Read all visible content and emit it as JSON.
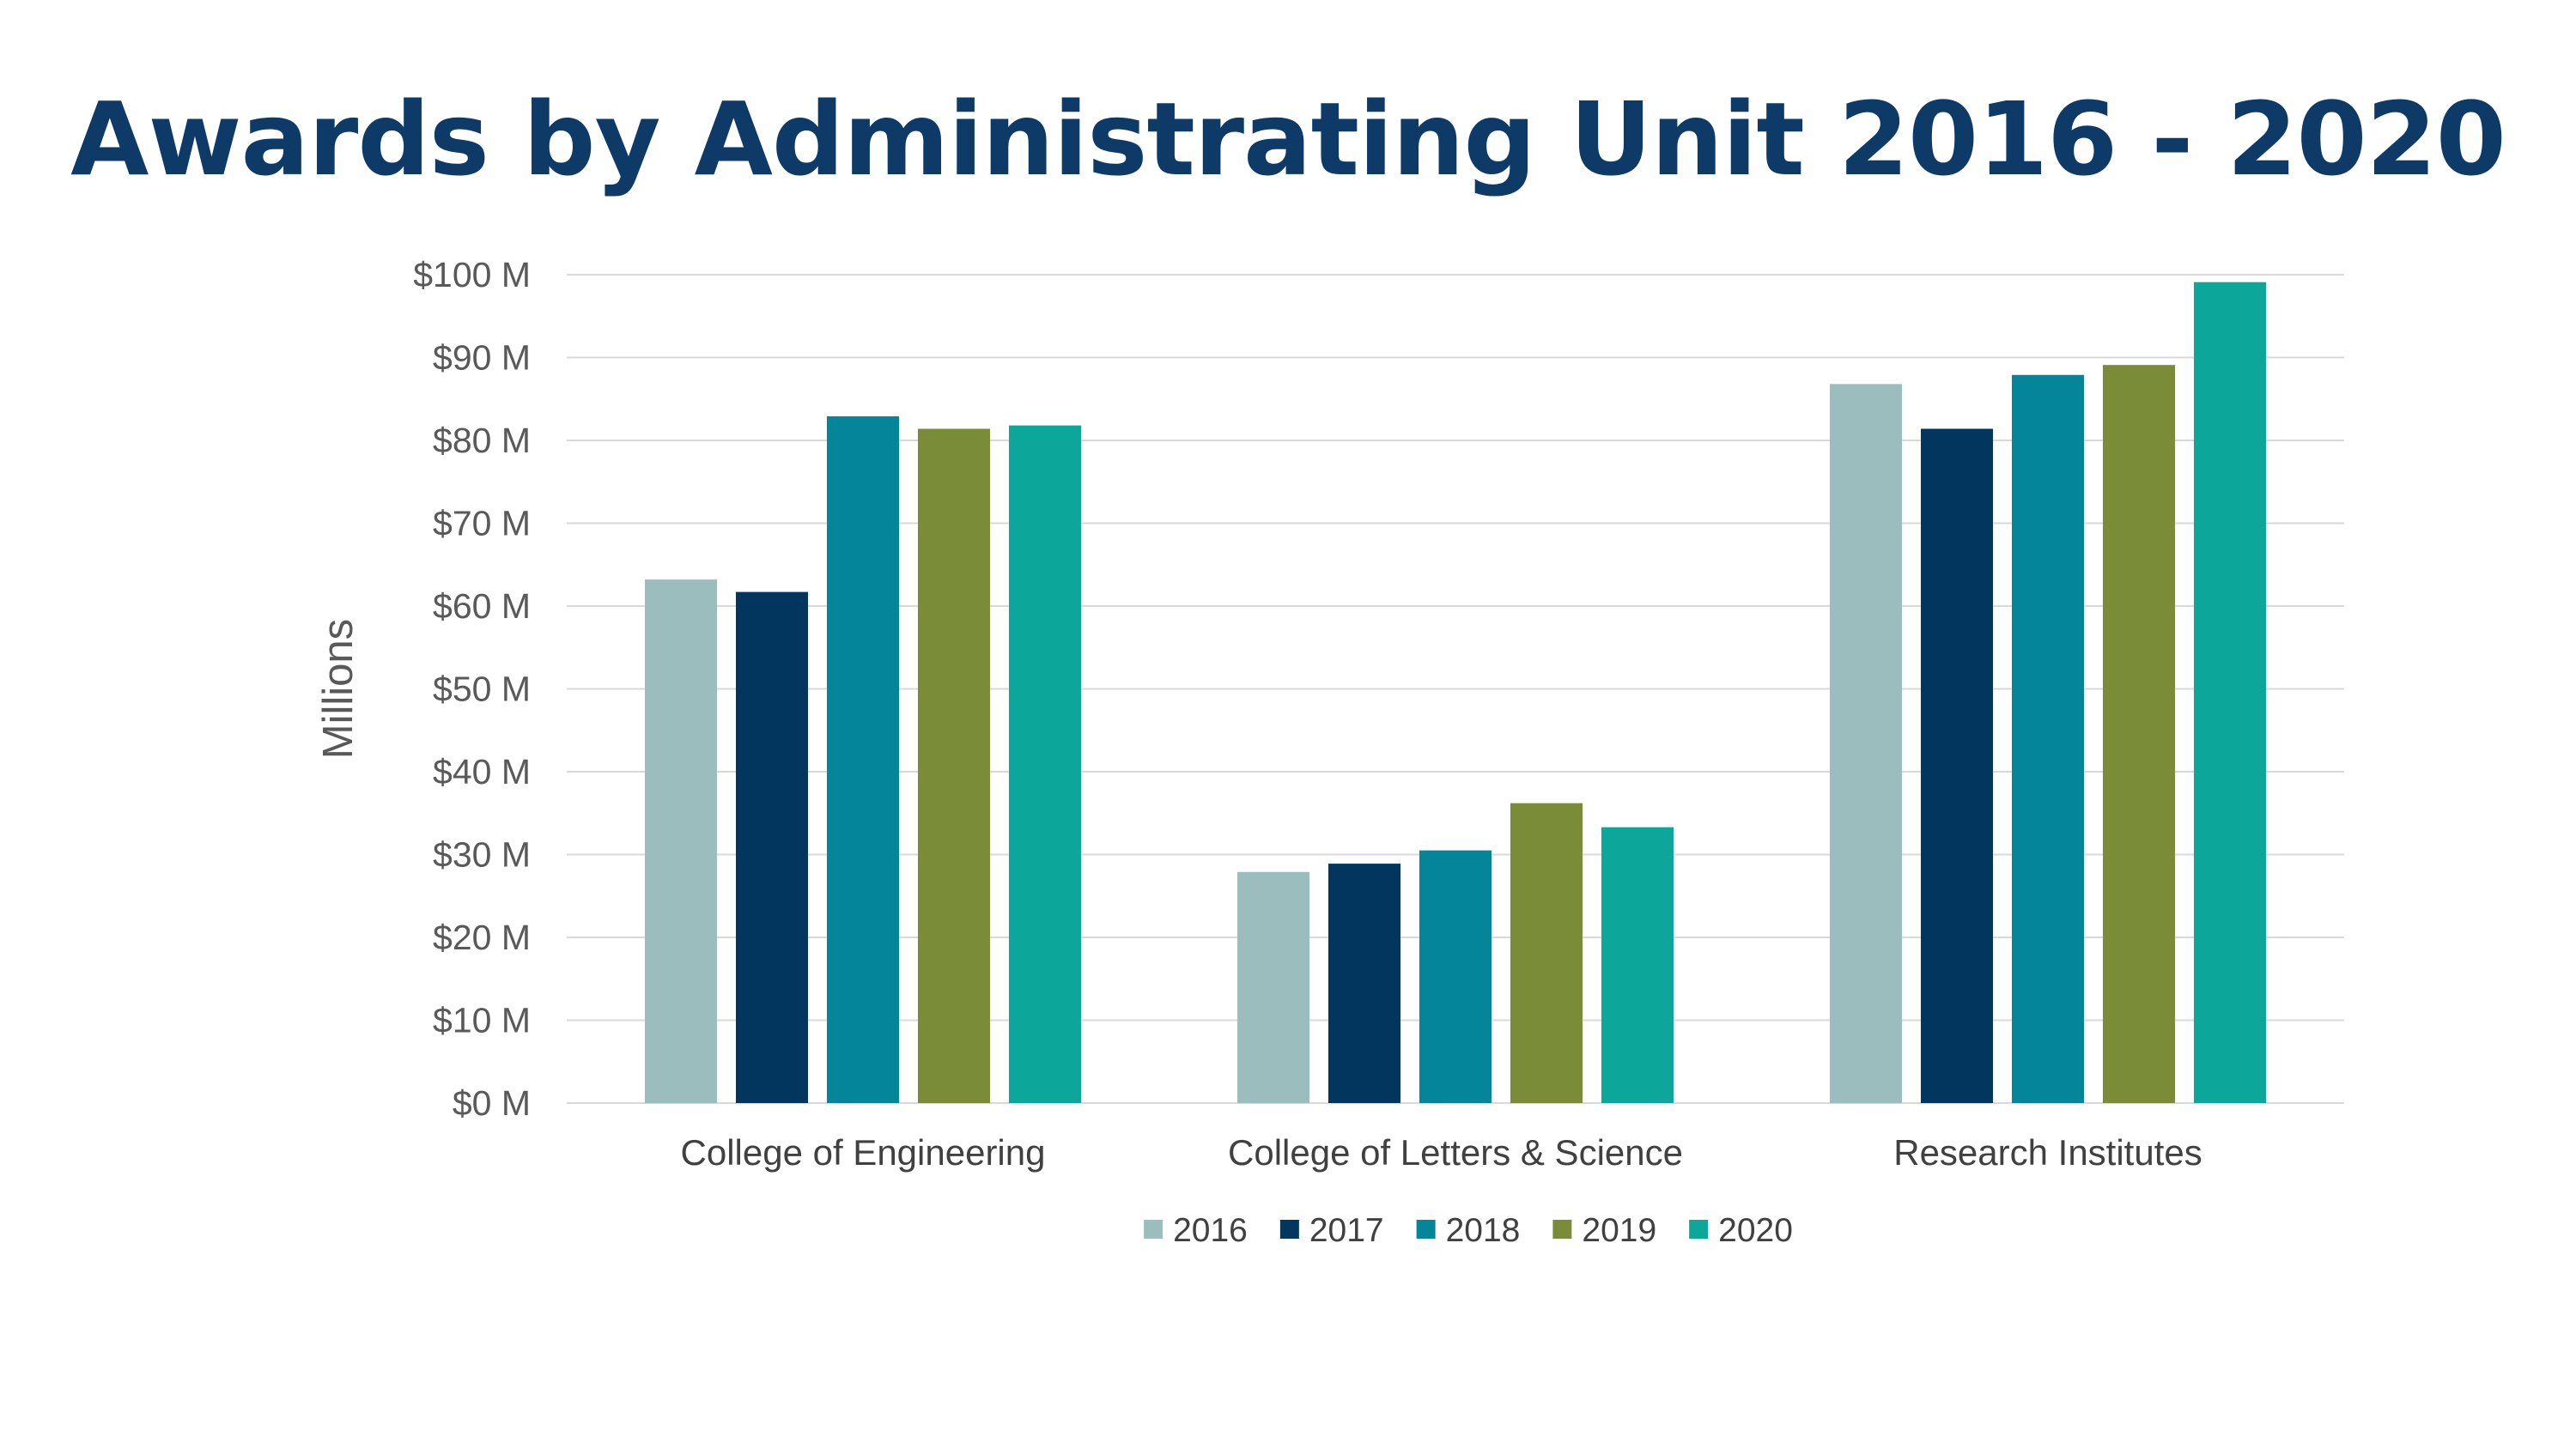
{
  "title": "Awards by Administrating Unit 2016 - 2020",
  "colors": {
    "title": "#0d3a66",
    "gridline": "#d9d9d9",
    "axis": "#d9d9d9"
  },
  "chart_data": {
    "type": "bar",
    "title": "Awards by Administrating Unit 2016 - 2020",
    "xlabel": "",
    "ylabel": "Millions",
    "ylim": [
      0,
      100
    ],
    "yticks": [
      0,
      10,
      20,
      30,
      40,
      50,
      60,
      70,
      80,
      90,
      100
    ],
    "ytick_labels": [
      "$0 M",
      "$10 M",
      "$20 M",
      "$30 M",
      "$40 M",
      "$50 M",
      "$60 M",
      "$70 M",
      "$80 M",
      "$90 M",
      "$100 M"
    ],
    "grid": true,
    "legend_position": "bottom",
    "categories": [
      "College of Engineering",
      "College of Letters & Science",
      "Research Institutes"
    ],
    "series": [
      {
        "name": "2016",
        "color": "#9bbdbd",
        "values": [
          63.2,
          27.9,
          86.8
        ]
      },
      {
        "name": "2017",
        "color": "#02365e",
        "values": [
          61.7,
          28.9,
          81.4
        ]
      },
      {
        "name": "2018",
        "color": "#04859a",
        "values": [
          82.9,
          30.5,
          87.9
        ]
      },
      {
        "name": "2019",
        "color": "#7a8c38",
        "values": [
          81.4,
          36.2,
          89.1
        ]
      },
      {
        "name": "2020",
        "color": "#0da69a",
        "values": [
          81.8,
          33.3,
          99.1
        ]
      }
    ]
  }
}
